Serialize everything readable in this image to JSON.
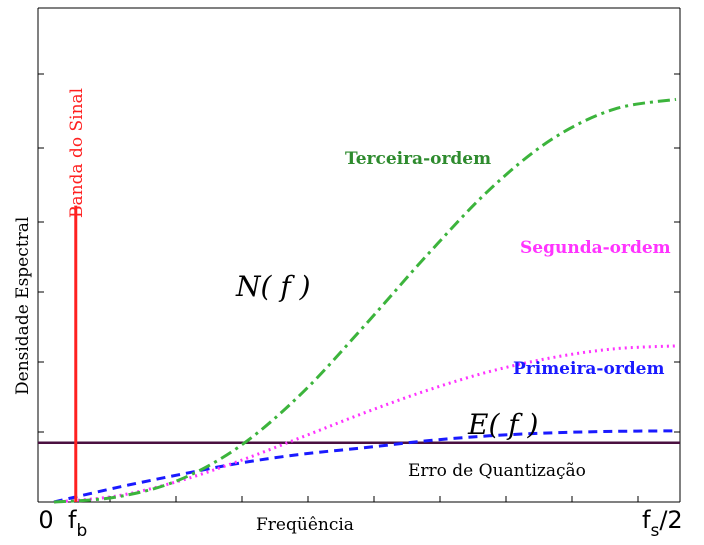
{
  "chart_data": {
    "type": "line",
    "xlabel": "Freqüência",
    "ylabel": "Densidade Espectral",
    "x_tick_left": "0",
    "x_tick_fb": "f",
    "x_tick_fb_sub": "b",
    "x_tick_right": "f",
    "x_tick_right_sub": "s",
    "x_tick_right_suffix": "/2",
    "xlim": [
      0,
      1
    ],
    "ylim": [
      0,
      1
    ],
    "signal_band": {
      "label": "Banda do Sinal",
      "x": 0.035,
      "height": 0.6,
      "color": "#ff2020"
    },
    "quantization_error": {
      "label": "Erro de Quantização",
      "value": 0.12,
      "color": "#4a1040"
    },
    "noise_label": "N( f )",
    "error_label": "E( f )",
    "series": [
      {
        "name": "Primeira-ordem",
        "color": "#1a1aff",
        "dash": "dashed",
        "x": [
          0,
          0.1,
          0.2,
          0.3,
          0.4,
          0.5,
          0.6,
          0.7,
          0.8,
          0.9,
          1.0
        ],
        "y": [
          0,
          0.029,
          0.055,
          0.079,
          0.097,
          0.11,
          0.124,
          0.134,
          0.14,
          0.143,
          0.144
        ]
      },
      {
        "name": "Segunda-ordem",
        "color": "#ff33ff",
        "dash": "dotted",
        "x": [
          0,
          0.1,
          0.2,
          0.3,
          0.4,
          0.5,
          0.6,
          0.7,
          0.8,
          0.9,
          1.0
        ],
        "y": [
          0,
          0.012,
          0.042,
          0.084,
          0.132,
          0.181,
          0.226,
          0.264,
          0.292,
          0.31,
          0.316
        ]
      },
      {
        "name": "Terceira-ordem",
        "color": "#3cb43c",
        "dash": "dashdot",
        "x": [
          0,
          0.1,
          0.2,
          0.3,
          0.4,
          0.5,
          0.6,
          0.7,
          0.8,
          0.9,
          1.0
        ],
        "y": [
          0,
          0.01,
          0.044,
          0.114,
          0.222,
          0.358,
          0.5,
          0.632,
          0.734,
          0.795,
          0.815
        ]
      }
    ]
  }
}
